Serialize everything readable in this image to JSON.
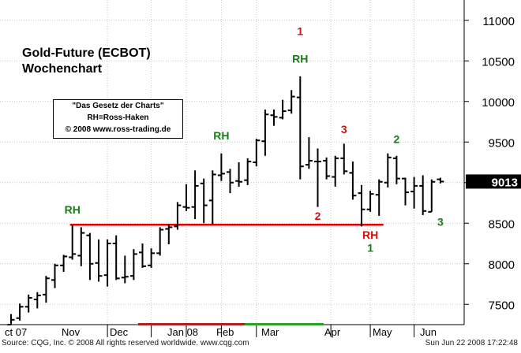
{
  "chart_data": {
    "type": "ohlc",
    "title": "Gold-Future (ECBOT)",
    "subtitle": "Wochenchart",
    "box": [
      "\"Das Gesetz der Charts\"",
      "RH=Ross-Haken",
      "© 2008 www.ross-trading.de"
    ],
    "ylim": [
      7250,
      11250
    ],
    "yticks": [
      7500,
      8000,
      8500,
      9000,
      9500,
      10000,
      10500,
      11000
    ],
    "ytick_labels": [
      "7500",
      "8000",
      "8500",
      "9000",
      "9500",
      "10000",
      "10500",
      "11000"
    ],
    "xtick_labels": [
      "ct 07",
      "Nov",
      "Dec",
      "Jan 08",
      "Feb",
      "Mar",
      "Apr",
      "May",
      "Jun"
    ],
    "last_price": "9013",
    "support_level": 8480,
    "bars": [
      {
        "o": 7250,
        "h": 7380,
        "l": 7250,
        "c": 7310
      },
      {
        "o": 7330,
        "h": 7510,
        "l": 7300,
        "c": 7470
      },
      {
        "o": 7470,
        "h": 7620,
        "l": 7400,
        "c": 7580
      },
      {
        "o": 7560,
        "h": 7650,
        "l": 7450,
        "c": 7610
      },
      {
        "o": 7620,
        "h": 7850,
        "l": 7520,
        "c": 7820
      },
      {
        "o": 7800,
        "h": 8000,
        "l": 7700,
        "c": 7980
      },
      {
        "o": 7980,
        "h": 8110,
        "l": 7900,
        "c": 8090
      },
      {
        "o": 8080,
        "h": 8470,
        "l": 8050,
        "c": 8120
      },
      {
        "o": 8100,
        "h": 8450,
        "l": 7970,
        "c": 8380
      },
      {
        "o": 8350,
        "h": 8380,
        "l": 7800,
        "c": 8000
      },
      {
        "o": 8010,
        "h": 8300,
        "l": 7780,
        "c": 7850
      },
      {
        "o": 7860,
        "h": 8300,
        "l": 7720,
        "c": 8250
      },
      {
        "o": 8250,
        "h": 8350,
        "l": 7800,
        "c": 7820
      },
      {
        "o": 7830,
        "h": 8100,
        "l": 7760,
        "c": 7840
      },
      {
        "o": 7850,
        "h": 8180,
        "l": 7800,
        "c": 8120
      },
      {
        "o": 8140,
        "h": 8250,
        "l": 7950,
        "c": 7970
      },
      {
        "o": 7980,
        "h": 8190,
        "l": 7950,
        "c": 8130
      },
      {
        "o": 8130,
        "h": 8450,
        "l": 8100,
        "c": 8420
      },
      {
        "o": 8430,
        "h": 8490,
        "l": 8240,
        "c": 8450
      },
      {
        "o": 8460,
        "h": 8760,
        "l": 8420,
        "c": 8720
      },
      {
        "o": 8700,
        "h": 8980,
        "l": 8650,
        "c": 8690
      },
      {
        "o": 8700,
        "h": 9150,
        "l": 8550,
        "c": 8960
      },
      {
        "o": 8990,
        "h": 9050,
        "l": 8500,
        "c": 8720
      },
      {
        "o": 8780,
        "h": 9150,
        "l": 8490,
        "c": 9100
      },
      {
        "o": 9090,
        "h": 9360,
        "l": 9020,
        "c": 9110
      },
      {
        "o": 9130,
        "h": 9170,
        "l": 8870,
        "c": 9000
      },
      {
        "o": 9020,
        "h": 9250,
        "l": 8950,
        "c": 9010
      },
      {
        "o": 9030,
        "h": 9300,
        "l": 8970,
        "c": 9260
      },
      {
        "o": 9250,
        "h": 9540,
        "l": 9200,
        "c": 9520
      },
      {
        "o": 9510,
        "h": 9900,
        "l": 9330,
        "c": 9840
      },
      {
        "o": 9830,
        "h": 9900,
        "l": 9700,
        "c": 9810
      },
      {
        "o": 9800,
        "h": 10020,
        "l": 9780,
        "c": 9880
      },
      {
        "o": 9890,
        "h": 10140,
        "l": 9850,
        "c": 10060
      },
      {
        "o": 10050,
        "h": 10310,
        "l": 9040,
        "c": 9200
      },
      {
        "o": 9220,
        "h": 9560,
        "l": 9170,
        "c": 9270
      },
      {
        "o": 9260,
        "h": 9420,
        "l": 8700,
        "c": 9260
      },
      {
        "o": 9270,
        "h": 9310,
        "l": 9040,
        "c": 9080
      },
      {
        "o": 9070,
        "h": 9330,
        "l": 8950,
        "c": 9300
      },
      {
        "o": 9300,
        "h": 9480,
        "l": 9100,
        "c": 9140
      },
      {
        "o": 9120,
        "h": 9260,
        "l": 8790,
        "c": 8840
      },
      {
        "o": 8870,
        "h": 8970,
        "l": 8460,
        "c": 8670
      },
      {
        "o": 8670,
        "h": 8900,
        "l": 8640,
        "c": 8860
      },
      {
        "o": 8850,
        "h": 9040,
        "l": 8590,
        "c": 9010
      },
      {
        "o": 9000,
        "h": 9360,
        "l": 8940,
        "c": 9310
      },
      {
        "o": 9300,
        "h": 9330,
        "l": 8980,
        "c": 9050
      },
      {
        "o": 9050,
        "h": 9060,
        "l": 8720,
        "c": 8880
      },
      {
        "o": 8890,
        "h": 9070,
        "l": 8680,
        "c": 8960
      },
      {
        "o": 8960,
        "h": 9090,
        "l": 8600,
        "c": 8650
      },
      {
        "o": 8640,
        "h": 9040,
        "l": 8640,
        "c": 9010
      },
      {
        "o": 9040,
        "h": 9060,
        "l": 8990,
        "c": 9013
      }
    ],
    "annotations": [
      {
        "text": "RH",
        "color": "#1a7a1a",
        "bar": 7,
        "price": 8620
      },
      {
        "text": "RH",
        "color": "#1a7a1a",
        "bar": 24,
        "price": 9530
      },
      {
        "text": "1",
        "color": "#cc1111",
        "bar": 33,
        "price": 10820
      },
      {
        "text": "RH",
        "color": "#1a7a1a",
        "bar": 33,
        "price": 10480
      },
      {
        "text": "3",
        "color": "#cc1111",
        "bar": 38,
        "price": 9610
      },
      {
        "text": "2",
        "color": "#1a7a1a",
        "bar": 44,
        "price": 9490
      },
      {
        "text": "2",
        "color": "#cc1111",
        "bar": 35,
        "price": 8540
      },
      {
        "text": "RH",
        "color": "#cc1111",
        "bar": 41,
        "price": 8310
      },
      {
        "text": "1",
        "color": "#1a7a1a",
        "bar": 41,
        "price": 8150
      },
      {
        "text": "3",
        "color": "#1a7a1a",
        "bar": 49,
        "price": 8470
      }
    ]
  },
  "footer": {
    "source": "Source: CQG, Inc. © 2008 All rights reserved worldwide. www.cqg.com",
    "timestamp": "Sun Jun 22 2008 17:22:48"
  },
  "colors": {
    "bars": "#000000",
    "support": "#e00000",
    "annot_green": "#1a7a1a",
    "annot_red": "#cc1111",
    "grid": "#c8c8c8"
  }
}
